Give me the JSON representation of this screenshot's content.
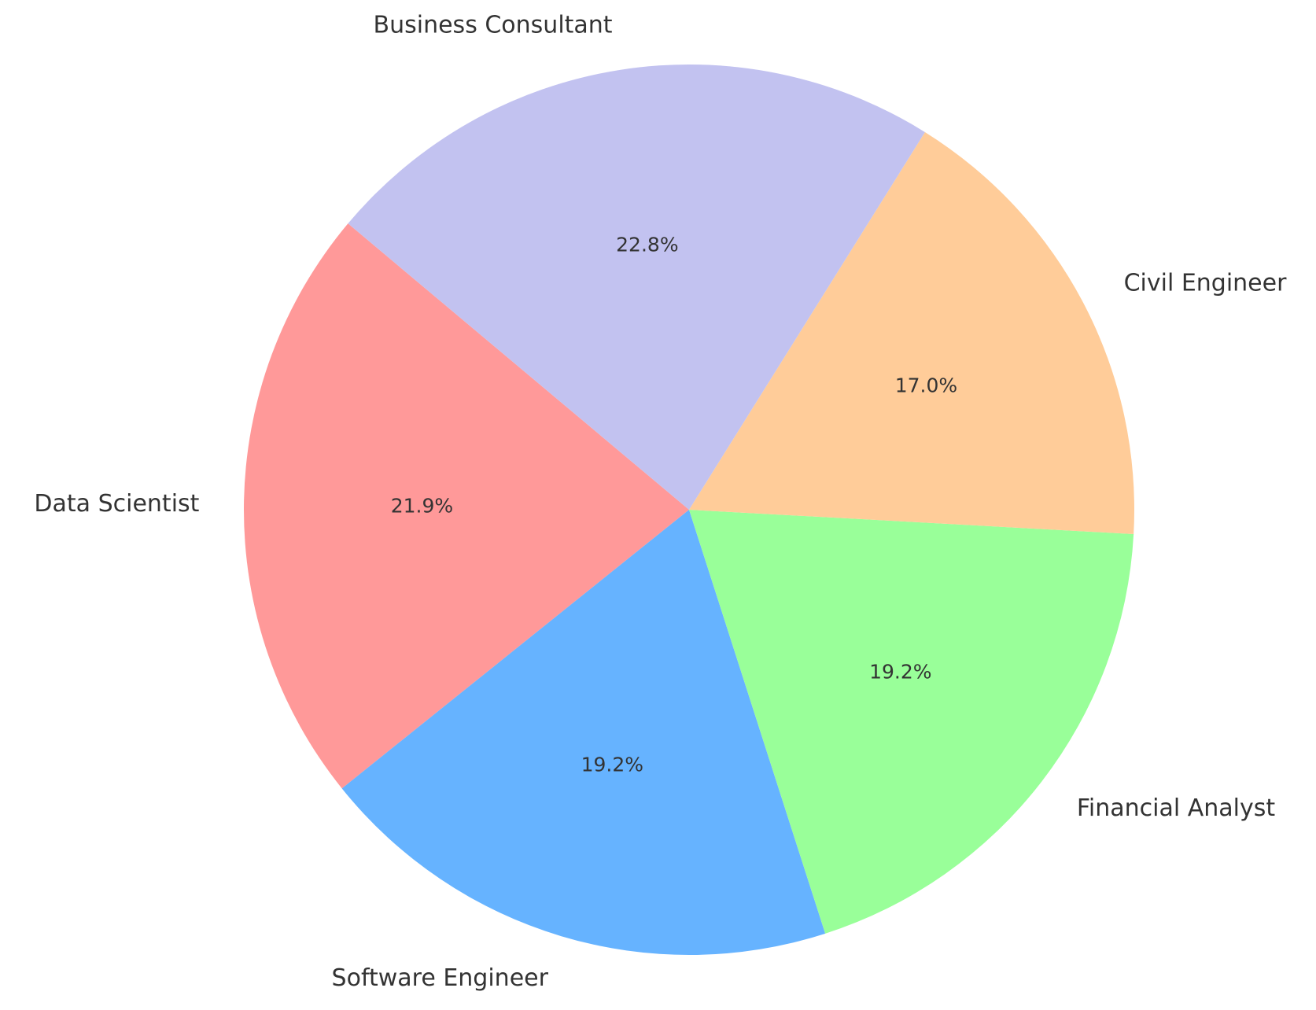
{
  "chart_data": {
    "type": "pie",
    "title": "",
    "slices": [
      {
        "label": "Data Scientist",
        "value": 21.9,
        "pct_label": "21.9%",
        "color": "#ff9999"
      },
      {
        "label": "Software Engineer",
        "value": 19.2,
        "pct_label": "19.2%",
        "color": "#66b3ff"
      },
      {
        "label": "Financial Analyst",
        "value": 19.2,
        "pct_label": "19.2%",
        "color": "#99ff99"
      },
      {
        "label": "Civil Engineer",
        "value": 17.0,
        "pct_label": "17.0%",
        "color": "#ffcc99"
      },
      {
        "label": "Business Consultant",
        "value": 22.8,
        "pct_label": "22.8%",
        "color": "#c2c2f0"
      }
    ],
    "start_angle_deg": 140,
    "direction": "counterclockwise",
    "legend": "none"
  }
}
